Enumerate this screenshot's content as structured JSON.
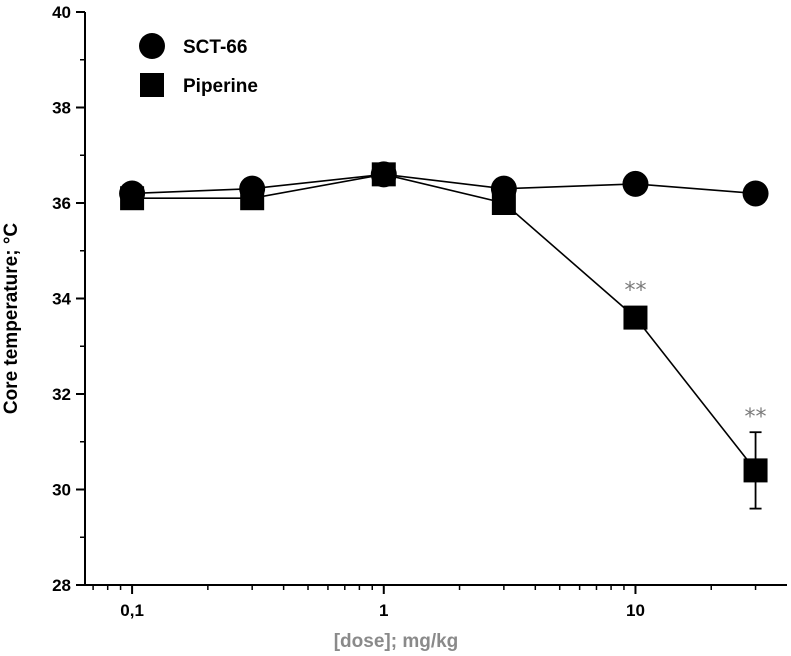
{
  "chart_data": {
    "type": "scatter",
    "title": "",
    "xlabel": "[dose]; mg/kg",
    "ylabel": "Core temperature; °C",
    "x_scale": "log",
    "xlim": [
      0.065,
      40
    ],
    "ylim": [
      28,
      40
    ],
    "x_ticks": [
      {
        "value": 0.1,
        "label": "0,1"
      },
      {
        "value": 1,
        "label": "1"
      },
      {
        "value": 10,
        "label": "10"
      }
    ],
    "y_ticks": [
      28,
      30,
      32,
      34,
      36,
      38,
      40
    ],
    "legend_placement": "top-left",
    "series": [
      {
        "name": "SCT-66",
        "marker": "circle",
        "points": [
          {
            "x": 0.1,
            "y": 36.2
          },
          {
            "x": 0.3,
            "y": 36.3
          },
          {
            "x": 1,
            "y": 36.6
          },
          {
            "x": 3,
            "y": 36.3
          },
          {
            "x": 10,
            "y": 36.4
          },
          {
            "x": 30,
            "y": 36.2
          }
        ]
      },
      {
        "name": "Piperine",
        "marker": "square",
        "points": [
          {
            "x": 0.1,
            "y": 36.1
          },
          {
            "x": 0.3,
            "y": 36.1
          },
          {
            "x": 1,
            "y": 36.6
          },
          {
            "x": 3,
            "y": 36.0
          },
          {
            "x": 10,
            "y": 33.6,
            "annotation": "**"
          },
          {
            "x": 30,
            "y": 30.4,
            "error": 0.8,
            "annotation": "**"
          }
        ]
      }
    ]
  }
}
